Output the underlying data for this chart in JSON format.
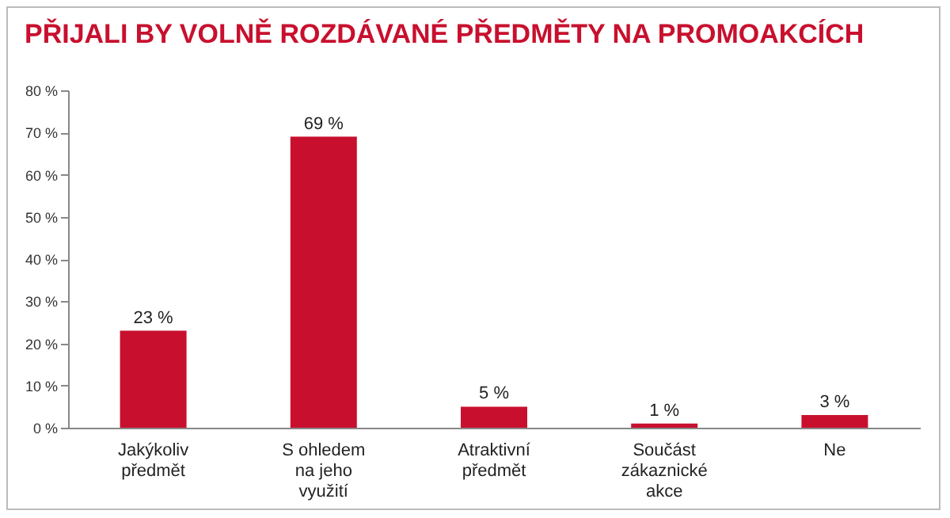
{
  "chart_data": {
    "type": "bar",
    "title": "PŘIJALI BY VOLNĚ ROZDÁVANÉ PŘEDMĚTY NA PROMOAKCÍCH",
    "categories": [
      "Jakýkoliv předmět",
      "S ohledem na jeho využití",
      "Atraktivní předmět",
      "Součást zákaznické akce",
      "Ne"
    ],
    "values": [
      23,
      69,
      5,
      1,
      3
    ],
    "value_labels": [
      "23 %",
      "69 %",
      "5 %",
      "1 %",
      "3 %"
    ],
    "color": "#c8102e",
    "ylim": [
      0,
      80
    ],
    "yticks": [
      {
        "value": 0,
        "label": "0 %"
      },
      {
        "value": 10,
        "label": "10 %"
      },
      {
        "value": 20,
        "label": "20 %"
      },
      {
        "value": 30,
        "label": "30 %"
      },
      {
        "value": 40,
        "label": "40 %"
      },
      {
        "value": 50,
        "label": "50 %"
      },
      {
        "value": 60,
        "label": "60 %"
      },
      {
        "value": 70,
        "label": "70 %"
      },
      {
        "value": 80,
        "label": "80 %"
      }
    ],
    "grid": false
  }
}
